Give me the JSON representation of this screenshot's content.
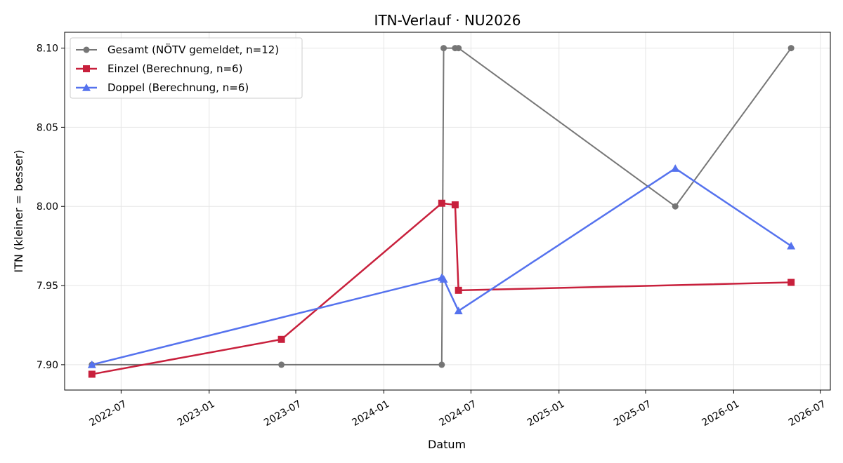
{
  "chart_data": {
    "type": "line",
    "title": "ITN-Verlauf · NU2026",
    "xlabel": "Datum",
    "ylabel": "ITN  (kleiner = besser)",
    "x_axis_type": "date",
    "xlim": [
      "2022-03-05",
      "2026-07-22"
    ],
    "ylim": [
      7.884,
      8.11
    ],
    "grid": true,
    "legend_position": "top-left",
    "x_ticks": [
      "2022-07",
      "2023-01",
      "2023-07",
      "2024-01",
      "2024-07",
      "2025-01",
      "2025-07",
      "2026-01",
      "2026-07"
    ],
    "y_ticks": [
      "7.90",
      "7.95",
      "8.00",
      "8.05",
      "8.10"
    ],
    "series": [
      {
        "name": "Gesamt (NÖTV gemeldet, n=12)",
        "color": "#555555",
        "marker": "circle",
        "points": [
          {
            "x": "2022-05-01",
            "y": 7.9
          },
          {
            "x": "2023-06-01",
            "y": 7.9
          },
          {
            "x": "2024-05-01",
            "y": 7.9
          },
          {
            "x": "2024-05-05",
            "y": 8.1
          },
          {
            "x": "2024-05-29",
            "y": 8.1
          },
          {
            "x": "2024-06-05",
            "y": 8.1
          },
          {
            "x": "2025-09-01",
            "y": 8.0
          },
          {
            "x": "2026-05-01",
            "y": 8.1
          }
        ]
      },
      {
        "name": "Einzel (Berechnung, n=6)",
        "color": "#c8203c",
        "marker": "square",
        "points": [
          {
            "x": "2022-05-01",
            "y": 7.894
          },
          {
            "x": "2023-06-01",
            "y": 7.916
          },
          {
            "x": "2024-05-01",
            "y": 8.002
          },
          {
            "x": "2024-05-29",
            "y": 8.001
          },
          {
            "x": "2024-06-05",
            "y": 7.947
          },
          {
            "x": "2026-05-01",
            "y": 7.952
          }
        ]
      },
      {
        "name": "Doppel (Berechnung, n=6)",
        "color": "#5572ee",
        "marker": "triangle",
        "points": [
          {
            "x": "2022-05-01",
            "y": 7.9
          },
          {
            "x": "2024-05-01",
            "y": 7.955
          },
          {
            "x": "2024-05-05",
            "y": 7.954
          },
          {
            "x": "2024-06-05",
            "y": 7.934
          },
          {
            "x": "2025-09-01",
            "y": 8.024
          },
          {
            "x": "2026-05-01",
            "y": 7.975
          }
        ]
      }
    ]
  }
}
